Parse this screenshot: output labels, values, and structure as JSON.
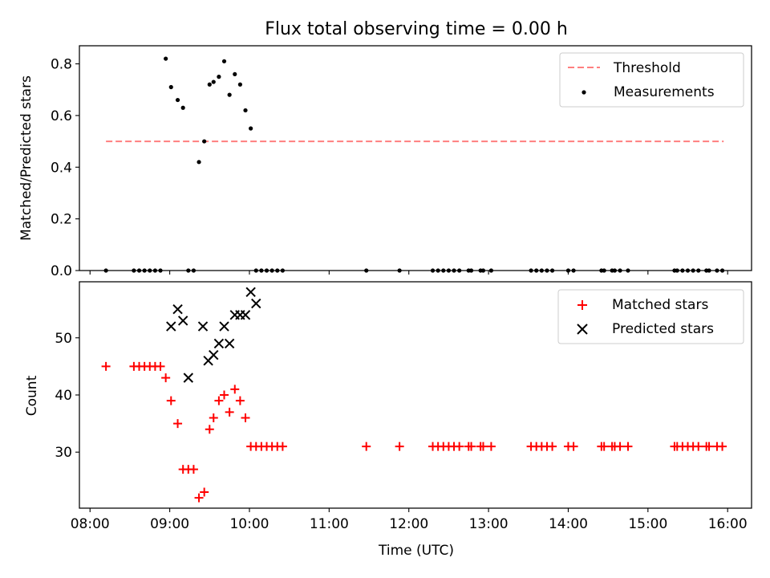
{
  "figure": {
    "title": "Flux total observing time = 0.00 h"
  },
  "colors": {
    "threshold": "#ff7f7f",
    "measurement": "#000000",
    "matched": "#ff0000",
    "predicted": "#000000"
  },
  "chart_data": [
    {
      "id": "ratio",
      "type": "scatter",
      "xlabel": "",
      "ylabel": "Matched/Predicted stars",
      "xlim": [
        "07:52",
        "16:18"
      ],
      "ylim": [
        0,
        0.87
      ],
      "x_ticks": [
        "08:00",
        "09:00",
        "10:00",
        "11:00",
        "12:00",
        "13:00",
        "14:00",
        "15:00",
        "16:00"
      ],
      "y_ticks": [
        0.0,
        0.2,
        0.4,
        0.6,
        0.8
      ],
      "y_tick_labels": [
        "0.0",
        "0.2",
        "0.4",
        "0.6",
        "0.8"
      ],
      "legend_position": "top-right",
      "series": [
        {
          "name": "Threshold",
          "kind": "line",
          "style": "dashed",
          "x": [
            "08:12",
            "15:57"
          ],
          "y": [
            0.5,
            0.5
          ]
        },
        {
          "name": "Measurements",
          "kind": "points",
          "x": [
            "08:12",
            "08:33",
            "08:37",
            "08:41",
            "08:45",
            "08:49",
            "08:53",
            "08:57",
            "09:01",
            "09:06",
            "09:10",
            "09:14",
            "09:18",
            "09:22",
            "09:26",
            "09:30",
            "09:33",
            "09:37",
            "09:41",
            "09:45",
            "09:49",
            "09:53",
            "09:57",
            "10:01",
            "10:05",
            "10:09",
            "10:13",
            "10:17",
            "10:21",
            "10:25",
            "11:28",
            "11:53",
            "12:18",
            "12:22",
            "12:26",
            "12:30",
            "12:34",
            "12:38",
            "12:45",
            "12:47",
            "12:54",
            "12:56",
            "13:02",
            "13:32",
            "13:36",
            "13:40",
            "13:44",
            "13:48",
            "14:00",
            "14:04",
            "14:25",
            "14:27",
            "14:33",
            "14:35",
            "14:39",
            "14:45",
            "15:20",
            "15:22",
            "15:26",
            "15:30",
            "15:34",
            "15:38",
            "15:44",
            "15:46",
            "15:52",
            "15:56"
          ],
          "y": [
            0,
            0,
            0,
            0,
            0,
            0,
            0,
            0.82,
            0.71,
            0.66,
            0.63,
            0,
            0,
            0.42,
            0.5,
            0.72,
            0.73,
            0.75,
            0.81,
            0.68,
            0.76,
            0.72,
            0.62,
            0.55,
            0,
            0,
            0,
            0,
            0,
            0,
            0,
            0,
            0,
            0,
            0,
            0,
            0,
            0,
            0,
            0,
            0,
            0,
            0,
            0,
            0,
            0,
            0,
            0,
            0,
            0,
            0,
            0,
            0,
            0,
            0,
            0,
            0,
            0,
            0,
            0,
            0,
            0,
            0,
            0,
            0,
            0
          ]
        }
      ]
    },
    {
      "id": "count",
      "type": "scatter",
      "xlabel": "Time (UTC)",
      "ylabel": "Count",
      "xlim": [
        "07:52",
        "16:18"
      ],
      "ylim": [
        20.2,
        59.8
      ],
      "x_ticks": [
        "08:00",
        "09:00",
        "10:00",
        "11:00",
        "12:00",
        "13:00",
        "14:00",
        "15:00",
        "16:00"
      ],
      "x_tick_labels": [
        "08:00",
        "09:00",
        "10:00",
        "11:00",
        "12:00",
        "13:00",
        "14:00",
        "15:00",
        "16:00"
      ],
      "y_ticks": [
        30,
        40,
        50
      ],
      "y_tick_labels": [
        "30",
        "40",
        "50"
      ],
      "legend_position": "top-right",
      "series": [
        {
          "name": "Matched stars",
          "kind": "plus",
          "x": [
            "08:12",
            "08:33",
            "08:37",
            "08:41",
            "08:45",
            "08:49",
            "08:53",
            "08:57",
            "09:01",
            "09:06",
            "09:10",
            "09:14",
            "09:18",
            "09:22",
            "09:26",
            "09:30",
            "09:33",
            "09:37",
            "09:41",
            "09:45",
            "09:49",
            "09:53",
            "09:57",
            "10:01",
            "10:05",
            "10:09",
            "10:13",
            "10:17",
            "10:21",
            "10:25",
            "11:28",
            "11:53",
            "12:18",
            "12:22",
            "12:26",
            "12:30",
            "12:34",
            "12:38",
            "12:45",
            "12:47",
            "12:54",
            "12:56",
            "13:02",
            "13:32",
            "13:36",
            "13:40",
            "13:44",
            "13:48",
            "14:00",
            "14:04",
            "14:25",
            "14:27",
            "14:33",
            "14:35",
            "14:39",
            "14:45",
            "15:20",
            "15:22",
            "15:26",
            "15:30",
            "15:34",
            "15:38",
            "15:44",
            "15:46",
            "15:52",
            "15:56"
          ],
          "y": [
            45,
            45,
            45,
            45,
            45,
            45,
            45,
            43,
            39,
            35,
            27,
            27,
            27,
            22,
            23,
            34,
            36,
            39,
            40,
            37,
            41,
            39,
            36,
            31,
            31,
            31,
            31,
            31,
            31,
            31,
            31,
            31,
            31,
            31,
            31,
            31,
            31,
            31,
            31,
            31,
            31,
            31,
            31,
            31,
            31,
            31,
            31,
            31,
            31,
            31,
            31,
            31,
            31,
            31,
            31,
            31,
            31,
            31,
            31,
            31,
            31,
            31,
            31,
            31,
            31,
            31
          ]
        },
        {
          "name": "Predicted stars",
          "kind": "cross",
          "x": [
            "09:01",
            "09:06",
            "09:10",
            "09:14",
            "09:25",
            "09:29",
            "09:33",
            "09:37",
            "09:41",
            "09:45",
            "09:49",
            "09:53",
            "09:57",
            "10:01",
            "10:05"
          ],
          "y": [
            52,
            55,
            53,
            43,
            52,
            46,
            47,
            49,
            52,
            49,
            54,
            54,
            54,
            58,
            56
          ]
        }
      ]
    }
  ]
}
